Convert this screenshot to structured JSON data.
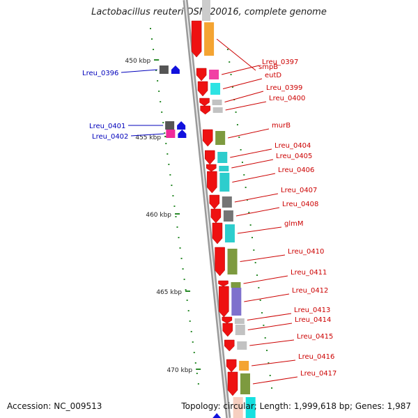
{
  "title": "Lactobacillus reuteri DSM 20016, complete genome",
  "footer": {
    "accession": "Accession: NC_009513",
    "topology": "Topology: circular; Length: 1,999,618 bp; Genes: 1,987"
  },
  "colors": {
    "backbone": "#9a9a9a",
    "forward_cds": "#ee1111",
    "reverse_cds": "#1111dd",
    "tick": "#2a8a2a",
    "label_forward": "#cc0000",
    "label_reverse": "#0000bb"
  },
  "ticks": [
    {
      "label": "450 kbp"
    },
    {
      "label": "455 kbp"
    },
    {
      "label": "460 kbp"
    },
    {
      "label": "465 kbp"
    },
    {
      "label": "470 kbp"
    }
  ],
  "genes_forward": [
    {
      "name": "smpB",
      "color": "#f39a1c"
    },
    {
      "name": "Lreu_0397",
      "color": "#f02a9a"
    },
    {
      "name": "eutD",
      "color": "#16e0e0"
    },
    {
      "name": "Lreu_0399",
      "color": "#bbbbbb"
    },
    {
      "name": "Lreu_0400",
      "color": "#bbbbbb"
    },
    {
      "name": "murB",
      "color": "#6f8f2a"
    },
    {
      "name": "Lreu_0404",
      "color": "#16c8c8"
    },
    {
      "name": "Lreu_0405",
      "color": "#16c8c8"
    },
    {
      "name": "Lreu_0406",
      "color": "#16c8c8"
    },
    {
      "name": "Lreu_0407",
      "color": "#666666"
    },
    {
      "name": "Lreu_0408",
      "color": "#666666"
    },
    {
      "name": "glmM",
      "color": "#16c8c8"
    },
    {
      "name": "Lreu_0410",
      "color": "#6f8f2a"
    },
    {
      "name": "Lreu_0411",
      "color": "#6f8f2a"
    },
    {
      "name": "Lreu_0412",
      "color": "#7060c8"
    },
    {
      "name": "Lreu_0413",
      "color": "#bbbbbb"
    },
    {
      "name": "Lreu_0414",
      "color": "#bbbbbb"
    },
    {
      "name": "Lreu_0415",
      "color": "#bbbbbb"
    },
    {
      "name": "Lreu_0416",
      "color": "#f39a1c"
    },
    {
      "name": "Lreu_0417",
      "color": "#6f8f2a"
    }
  ],
  "genes_reverse": [
    {
      "name": "Lreu_0396",
      "color": "#555555"
    },
    {
      "name": "Lreu_0401",
      "color": "#555555"
    },
    {
      "name": "Lreu_0402",
      "color": "#f02a9a"
    }
  ]
}
